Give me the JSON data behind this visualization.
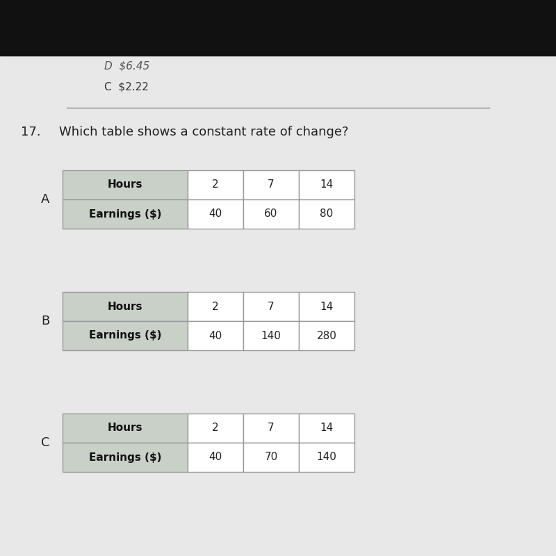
{
  "background_top": "#111111",
  "background_main": "#e8e8e8",
  "prev_options": [
    "D  $6.45",
    "C  $2.22"
  ],
  "question_number": "17.",
  "question_text": "Which table shows a constant rate of change?",
  "tables": [
    {
      "label": "A",
      "row1_header": "Hours",
      "row1_values": [
        "2",
        "7",
        "14"
      ],
      "row2_header": "Earnings ($)",
      "row2_values": [
        "40",
        "60",
        "80"
      ]
    },
    {
      "label": "B",
      "row1_header": "Hours",
      "row1_values": [
        "2",
        "7",
        "14"
      ],
      "row2_header": "Earnings ($)",
      "row2_values": [
        "40",
        "140",
        "280"
      ]
    },
    {
      "label": "C",
      "row1_header": "Hours",
      "row1_values": [
        "2",
        "7",
        "14"
      ],
      "row2_header": "Earnings ($)",
      "row2_values": [
        "40",
        "70",
        "140"
      ]
    }
  ],
  "header_bg": "#c8d0c8",
  "cell_bg": "#ffffff",
  "border_color": "#999999",
  "text_color": "#222222",
  "header_text_color": "#111111"
}
